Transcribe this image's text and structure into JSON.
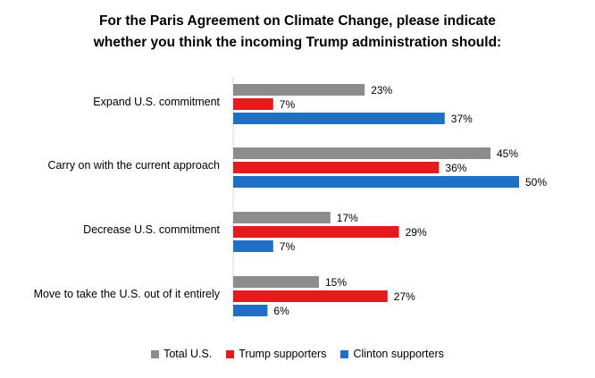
{
  "chart_data": {
    "type": "bar",
    "orientation": "horizontal",
    "title": "For the Paris Agreement on Climate Change, please indicate whether you think the incoming Trump administration should:",
    "title_lines": [
      "For the Paris Agreement on Climate Change, please indicate",
      "whether you think the incoming Trump administration should:"
    ],
    "categories": [
      "Expand U.S. commitment",
      "Carry on with the current approach",
      "Decrease U.S. commitment",
      "Move to take the U.S. out of it entirely"
    ],
    "series": [
      {
        "name": "Total U.S.",
        "color": "#8c8c8c",
        "values": [
          23,
          45,
          17,
          15
        ]
      },
      {
        "name": "Trump supporters",
        "color": "#e41a1c",
        "values": [
          7,
          36,
          29,
          27
        ]
      },
      {
        "name": "Clinton supporters",
        "color": "#1f6fc5",
        "values": [
          37,
          50,
          7,
          6
        ]
      }
    ],
    "value_suffix": "%",
    "xlim": [
      0,
      55
    ],
    "xlabel": "",
    "ylabel": "",
    "grid": false,
    "legend_position": "bottom"
  }
}
